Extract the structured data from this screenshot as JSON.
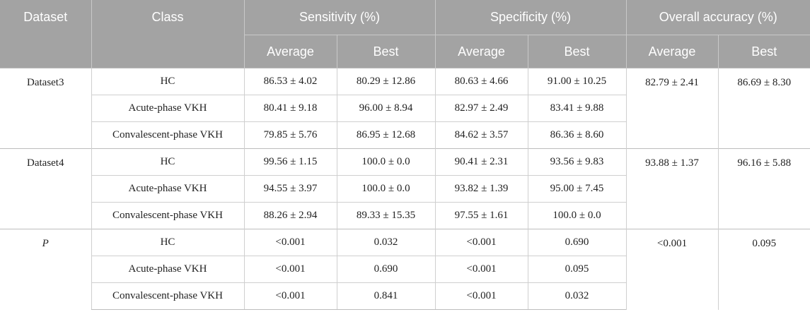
{
  "header": {
    "dataset": "Dataset",
    "class": "Class",
    "sensitivity": "Sensitivity (%)",
    "specificity": "Specificity (%)",
    "overall": "Overall accuracy (%)",
    "average": "Average",
    "best": "Best"
  },
  "groups": [
    {
      "name": "Dataset3",
      "overall_avg": "82.79 ± 2.41",
      "overall_best": "86.69 ± 8.30",
      "rows": [
        {
          "class": "HC",
          "sens_avg": "86.53 ± 4.02",
          "sens_best": "80.29 ± 12.86",
          "spec_avg": "80.63 ± 4.66",
          "spec_best": "91.00 ± 10.25"
        },
        {
          "class": "Acute-phase VKH",
          "sens_avg": "80.41 ± 9.18",
          "sens_best": "96.00 ± 8.94",
          "spec_avg": "82.97 ± 2.49",
          "spec_best": "83.41 ± 9.88"
        },
        {
          "class": "Convalescent-phase VKH",
          "sens_avg": "79.85 ± 5.76",
          "sens_best": "86.95 ± 12.68",
          "spec_avg": "84.62 ± 3.57",
          "spec_best": "86.36 ± 8.60"
        }
      ]
    },
    {
      "name": "Dataset4",
      "overall_avg": "93.88 ± 1.37",
      "overall_best": "96.16 ± 5.88",
      "rows": [
        {
          "class": "HC",
          "sens_avg": "99.56 ± 1.15",
          "sens_best": "100.0 ± 0.0",
          "spec_avg": "90.41 ± 2.31",
          "spec_best": "93.56 ± 9.83"
        },
        {
          "class": "Acute-phase VKH",
          "sens_avg": "94.55 ± 3.97",
          "sens_best": "100.0 ± 0.0",
          "spec_avg": "93.82 ± 1.39",
          "spec_best": "95.00 ± 7.45"
        },
        {
          "class": "Convalescent-phase VKH",
          "sens_avg": "88.26 ± 2.94",
          "sens_best": "89.33 ± 15.35",
          "spec_avg": "97.55 ± 1.61",
          "spec_best": "100.0 ± 0.0"
        }
      ]
    },
    {
      "name": "P",
      "overall_avg": "<0.001",
      "overall_best": "0.095",
      "rows": [
        {
          "class": "HC",
          "sens_avg": "<0.001",
          "sens_best": "0.032",
          "spec_avg": "<0.001",
          "spec_best": "0.690"
        },
        {
          "class": "Acute-phase VKH",
          "sens_avg": "<0.001",
          "sens_best": "0.690",
          "spec_avg": "<0.001",
          "spec_best": "0.095"
        },
        {
          "class": "Convalescent-phase VKH",
          "sens_avg": "<0.001",
          "sens_best": "0.841",
          "spec_avg": "<0.001",
          "spec_best": "0.032"
        }
      ]
    }
  ]
}
